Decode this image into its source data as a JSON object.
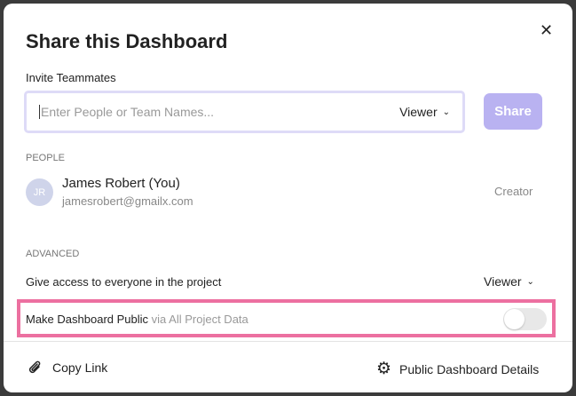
{
  "dialog": {
    "title": "Share this Dashboard",
    "close_icon": "close-icon"
  },
  "invite": {
    "label": "Invite Teammates",
    "placeholder": "Enter People or Team Names...",
    "role": "Viewer",
    "share_label": "Share",
    "share_color": "#b9b2f1"
  },
  "people": {
    "section": "PEOPLE",
    "items": [
      {
        "initials": "JR",
        "name": "James Robert (You)",
        "email": "jamesrobert@gmailx.com",
        "role": "Creator"
      }
    ]
  },
  "advanced": {
    "section": "ADVANCED",
    "project_access_label": "Give access to everyone in the project",
    "project_access_role": "Viewer",
    "public_label": "Make Dashboard Public",
    "public_sub": "via All Project Data",
    "public_enabled": false,
    "highlight_color": "#ec70a0"
  },
  "footer": {
    "copy_link": "Copy Link",
    "details": "Public Dashboard Details"
  }
}
